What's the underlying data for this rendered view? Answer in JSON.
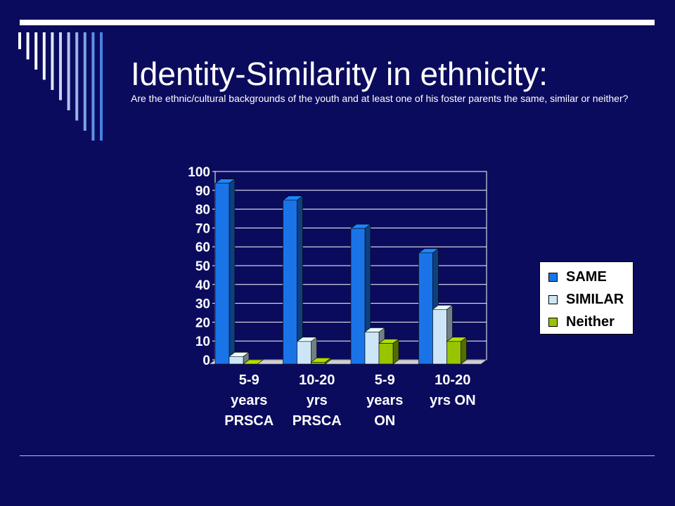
{
  "title": "Identity-Similarity in ethnicity:",
  "subtitle": "Are the ethnic/cultural backgrounds of the youth and at least one of his foster parents the same, similar or neither?",
  "colors": {
    "background": "#0b0b5e",
    "same": "#1a74e8",
    "similar": "#cde6f7",
    "neither": "#99c400"
  },
  "chart_data": {
    "type": "bar",
    "categories": [
      [
        "5-9",
        "years",
        "PRSCA"
      ],
      [
        "10-20",
        "yrs",
        "PRSCA"
      ],
      [
        "5-9",
        "years",
        "ON"
      ],
      [
        "10-20",
        "yrs ON"
      ]
    ],
    "series": [
      {
        "name": "SAME",
        "values": [
          96,
          87,
          72,
          59
        ]
      },
      {
        "name": "SIMILAR",
        "values": [
          4,
          12,
          17,
          29
        ]
      },
      {
        "name": "Neither",
        "values": [
          0,
          1,
          11,
          12
        ]
      }
    ],
    "ylim": [
      0,
      100
    ],
    "yticks": [
      "0",
      "10",
      "20",
      "30",
      "40",
      "50",
      "60",
      "70",
      "80",
      "90",
      "100"
    ],
    "grid": true,
    "legend": "right"
  }
}
